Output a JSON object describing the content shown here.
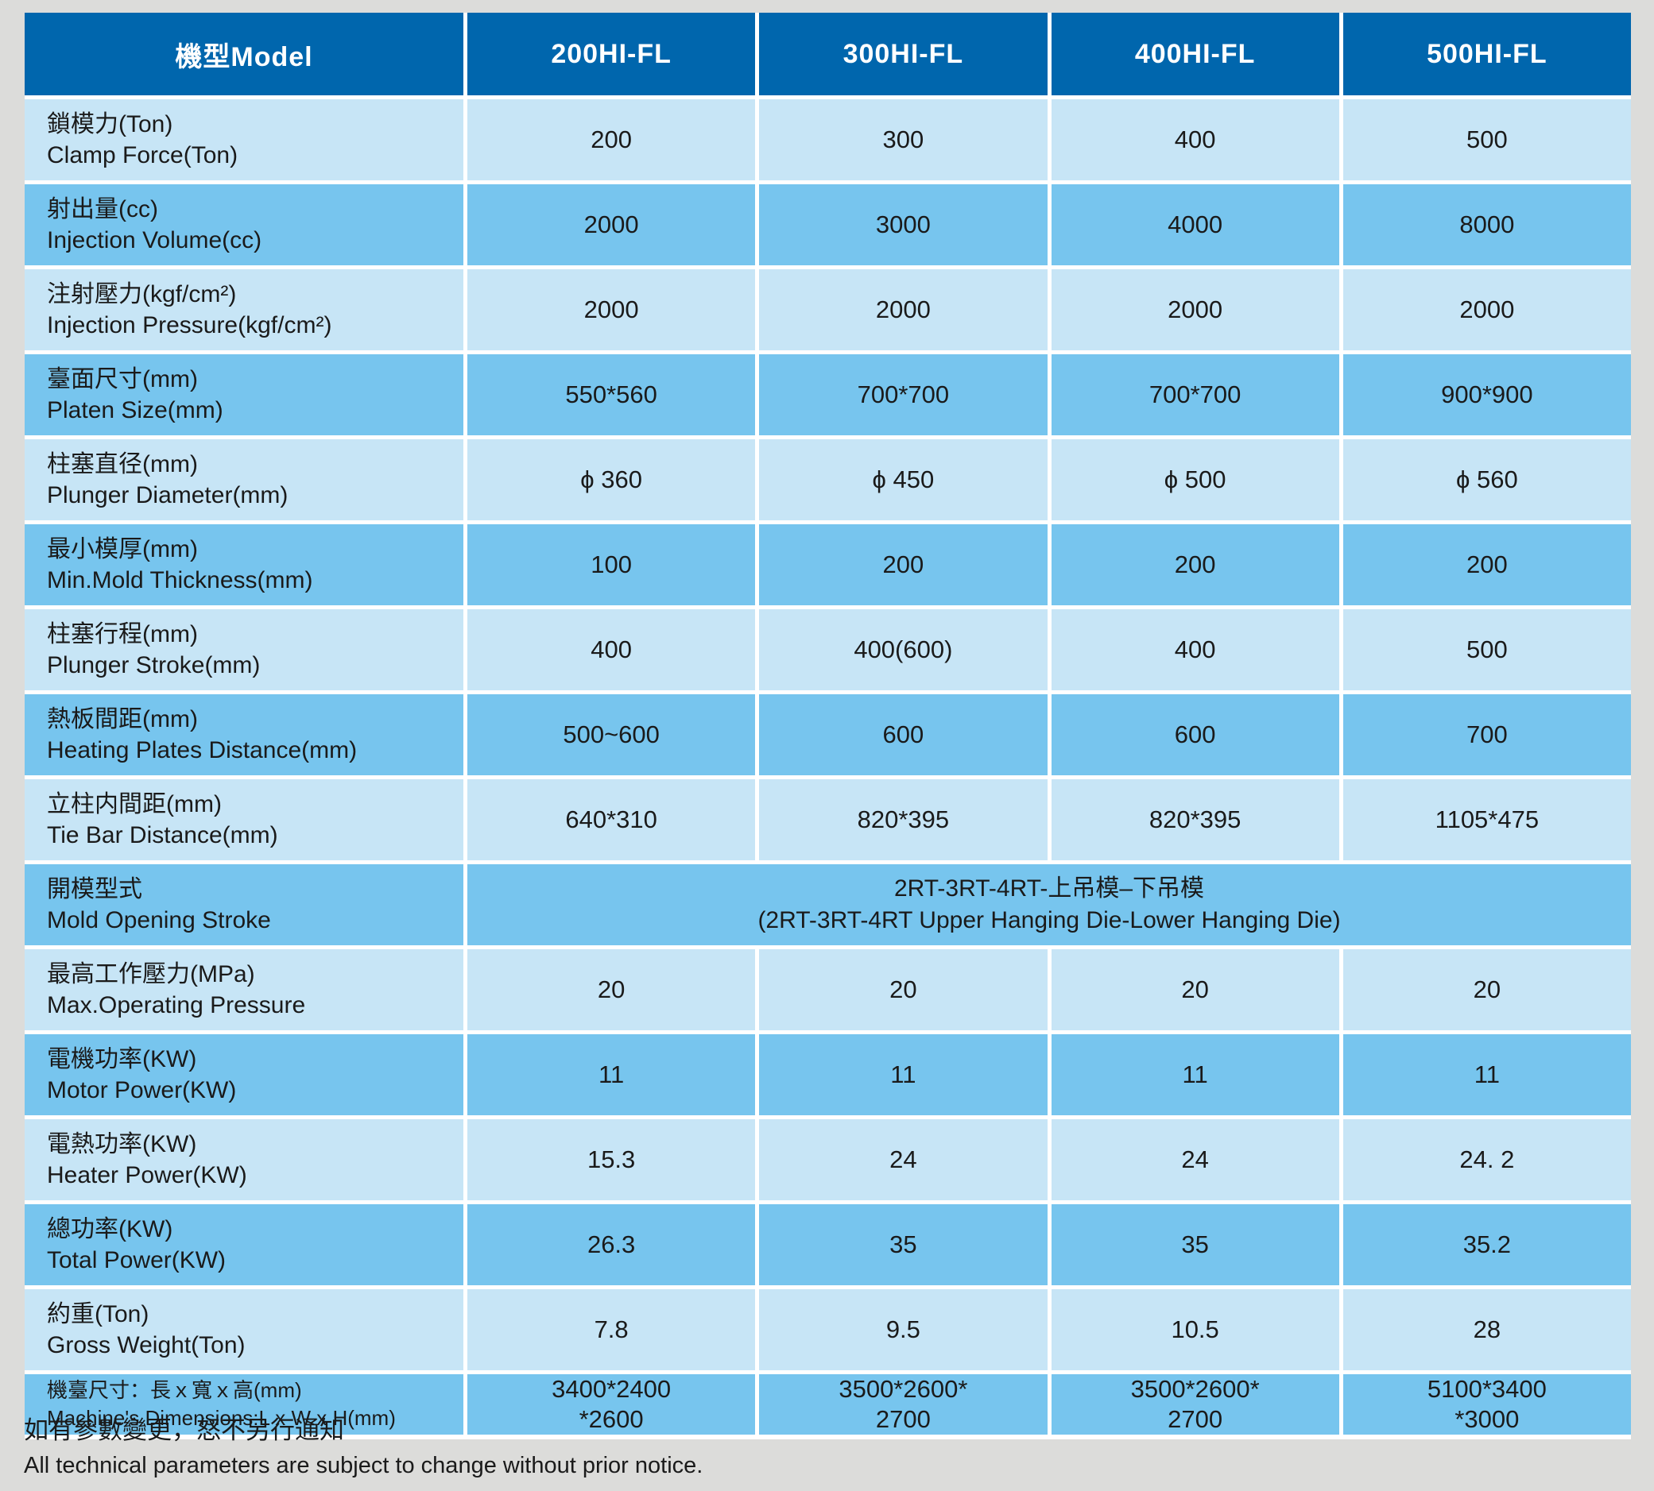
{
  "table": {
    "header": {
      "model_label": "機型Model",
      "models": [
        "200HI-FL",
        "300HI-FL",
        "400HI-FL",
        "500HI-FL"
      ]
    },
    "rows": [
      {
        "label_zh": "鎖模力(Ton)",
        "label_en": "Clamp Force(Ton)",
        "values": [
          "200",
          "300",
          "400",
          "500"
        ]
      },
      {
        "label_zh": "射出量(cc)",
        "label_en": "Injection Volume(cc)",
        "values": [
          "2000",
          "3000",
          "4000",
          "8000"
        ]
      },
      {
        "label_zh": "注射壓力(kgf/cm²)",
        "label_en": "Injection Pressure(kgf/cm²)",
        "values": [
          "2000",
          "2000",
          "2000",
          "2000"
        ]
      },
      {
        "label_zh": "臺面尺寸(mm)",
        "label_en": "Platen Size(mm)",
        "values": [
          "550*560",
          "700*700",
          "700*700",
          "900*900"
        ]
      },
      {
        "label_zh": "柱塞直径(mm)",
        "label_en": "Plunger Diameter(mm)",
        "values": [
          "ϕ 360",
          "ϕ 450",
          "ϕ 500",
          "ϕ 560"
        ]
      },
      {
        "label_zh": "最小模厚(mm)",
        "label_en": "Min.Mold Thickness(mm)",
        "values": [
          "100",
          "200",
          "200",
          "200"
        ]
      },
      {
        "label_zh": "柱塞行程(mm)",
        "label_en": "Plunger Stroke(mm)",
        "values": [
          "400",
          "400(600)",
          "400",
          "500"
        ]
      },
      {
        "label_zh": "熱板間距(mm)",
        "label_en": "Heating Plates Distance(mm)",
        "values": [
          "500~600",
          "600",
          "600",
          "700"
        ]
      },
      {
        "label_zh": "立柱内間距(mm)",
        "label_en": "Tie Bar Distance(mm)",
        "values": [
          "640*310",
          "820*395",
          "820*395",
          "1105*475"
        ]
      },
      {
        "label_zh": "開模型式",
        "label_en": "Mold Opening Stroke",
        "merged": true,
        "merged_line1": "2RT-3RT-4RT-上吊模–下吊模",
        "merged_line2": "(2RT-3RT-4RT Upper Hanging Die-Lower Hanging Die)"
      },
      {
        "label_zh": "最高工作壓力(MPa)",
        "label_en": "Max.Operating Pressure",
        "values": [
          "20",
          "20",
          "20",
          "20"
        ]
      },
      {
        "label_zh": "電機功率(KW)",
        "label_en": "Motor Power(KW)",
        "values": [
          "11",
          "11",
          "11",
          "11"
        ]
      },
      {
        "label_zh": "電熱功率(KW)",
        "label_en": "Heater Power(KW)",
        "values": [
          "15.3",
          "24",
          "24",
          "24. 2"
        ]
      },
      {
        "label_zh": "總功率(KW)",
        "label_en": "Total Power(KW)",
        "values": [
          "26.3",
          "35",
          "35",
          "35.2"
        ]
      },
      {
        "label_zh": "約重(Ton)",
        "label_en": "Gross Weight(Ton)",
        "values": [
          "7.8",
          "9.5",
          "10.5",
          "28"
        ]
      },
      {
        "label_zh": "機臺尺寸：長ｘ寬ｘ高(mm)",
        "label_en": "Machine's Dimensions:L x W x H(mm)",
        "small_label": true,
        "values": [
          "3400*2400\n*2600",
          "3500*2600*\n2700",
          "3500*2600*\n2700",
          "5100*3400\n*3000"
        ]
      }
    ]
  },
  "footer": {
    "line_zh": "如有參數變更，怒不另行通知",
    "line_en": "All technical parameters are subject to change without prior notice."
  },
  "colors": {
    "header_bg": "#0066ad",
    "header_text": "#ffffff",
    "row_light": "#c7e5f6",
    "row_medium": "#77c5ee",
    "page_bg": "#dcdcda",
    "text": "#1a1a1a"
  }
}
